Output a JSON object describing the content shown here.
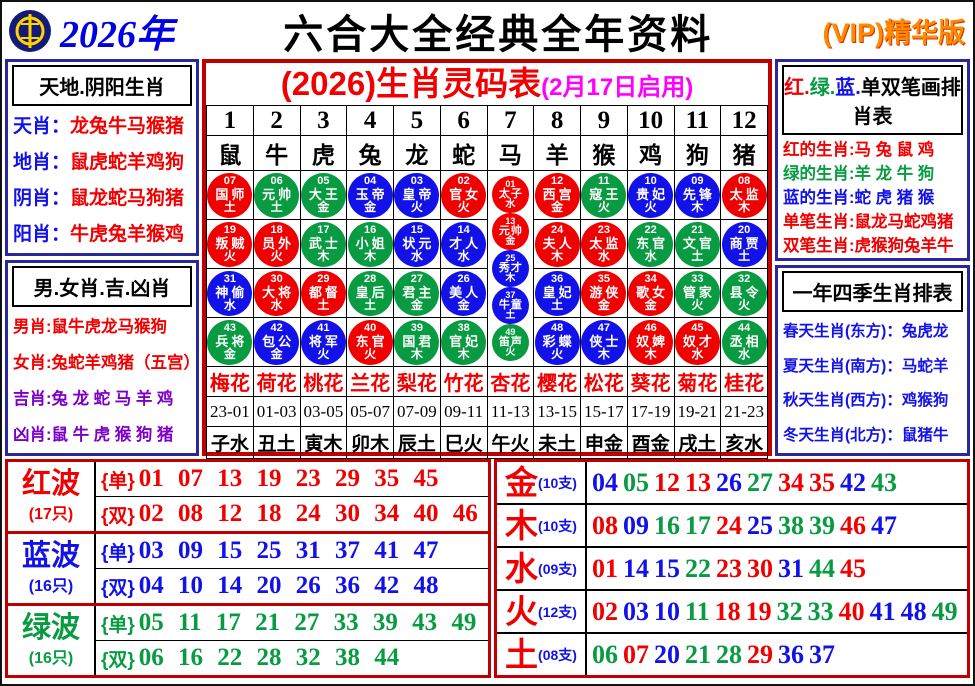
{
  "colors": {
    "red": "#f00000",
    "green": "#089b41",
    "blue": "#1212e8",
    "purple": "#7d00c8",
    "magenta": "#ff00ff",
    "navy": "#28289a",
    "border_red": "#c00000",
    "vip_orange": "#ff8a00",
    "year_blue": "#0000e0"
  },
  "number_color_map": {
    "red": [
      1,
      2,
      7,
      8,
      12,
      13,
      18,
      19,
      23,
      24,
      29,
      30,
      34,
      35,
      40,
      45,
      46
    ],
    "blue": [
      3,
      4,
      9,
      10,
      14,
      15,
      20,
      25,
      26,
      31,
      36,
      37,
      41,
      42,
      47,
      48
    ],
    "green": [
      5,
      6,
      11,
      16,
      17,
      21,
      22,
      27,
      28,
      32,
      33,
      38,
      39,
      43,
      44,
      49
    ]
  },
  "header": {
    "year": "2026年",
    "title": "六合大全经典全年资料",
    "vip": "(VIP)精华版"
  },
  "left_panel": {
    "box1": {
      "title": "天地.阴阳生肖",
      "items": [
        {
          "label": "天肖",
          "value": "龙兔牛马猴猪",
          "label_color": "blue",
          "value_color": "red"
        },
        {
          "label": "地肖",
          "value": "鼠虎蛇羊鸡狗",
          "label_color": "blue",
          "value_color": "red"
        },
        {
          "label": "阴肖",
          "value": "鼠龙蛇马狗猪",
          "label_color": "blue",
          "value_color": "red"
        },
        {
          "label": "阳肖",
          "value": "牛虎兔羊猴鸡",
          "label_color": "blue",
          "value_color": "red"
        }
      ]
    },
    "box2": {
      "title": "男.女肖.吉.凶肖",
      "items": [
        {
          "label": "男肖",
          "value": "鼠牛虎龙马猴狗",
          "label_color": "red",
          "value_color": "red"
        },
        {
          "label": "女肖",
          "value": "兔蛇羊鸡猪（五宫）",
          "label_color": "red",
          "value_color": "red"
        },
        {
          "label": "吉肖",
          "value": "兔 龙 蛇 马 羊 鸡",
          "label_color": "purple",
          "value_color": "purple"
        },
        {
          "label": "凶肖",
          "value": "鼠 牛 虎 猴 狗 猪",
          "label_color": "purple",
          "value_color": "purple"
        }
      ]
    }
  },
  "center": {
    "title": "(2026)生肖灵码表",
    "subtitle": "(2月17日启用)",
    "columns": [
      {
        "num": "1",
        "zodiac": "鼠",
        "flower": "梅花",
        "hour": "23-01",
        "branch": "子水",
        "balls": [
          {
            "n": "07",
            "t": "国师",
            "e": "土"
          },
          {
            "n": "19",
            "t": "叛贼",
            "e": "火"
          },
          {
            "n": "31",
            "t": "神偷",
            "e": "水"
          },
          {
            "n": "43",
            "t": "兵将",
            "e": "金"
          }
        ]
      },
      {
        "num": "2",
        "zodiac": "牛",
        "flower": "荷花",
        "hour": "01-03",
        "branch": "丑土",
        "balls": [
          {
            "n": "06",
            "t": "元帅",
            "e": "土"
          },
          {
            "n": "18",
            "t": "员外",
            "e": "火"
          },
          {
            "n": "30",
            "t": "大将",
            "e": "水"
          },
          {
            "n": "42",
            "t": "包公",
            "e": "金"
          }
        ]
      },
      {
        "num": "3",
        "zodiac": "虎",
        "flower": "桃花",
        "hour": "03-05",
        "branch": "寅木",
        "balls": [
          {
            "n": "05",
            "t": "大王",
            "e": "金"
          },
          {
            "n": "17",
            "t": "武士",
            "e": "木"
          },
          {
            "n": "29",
            "t": "都督",
            "e": "土"
          },
          {
            "n": "41",
            "t": "将军",
            "e": "火"
          }
        ]
      },
      {
        "num": "4",
        "zodiac": "兔",
        "flower": "兰花",
        "hour": "05-07",
        "branch": "卯木",
        "balls": [
          {
            "n": "04",
            "t": "玉帝",
            "e": "金"
          },
          {
            "n": "16",
            "t": "小姐",
            "e": "木"
          },
          {
            "n": "28",
            "t": "皇后",
            "e": "土"
          },
          {
            "n": "40",
            "t": "东官",
            "e": "火"
          }
        ]
      },
      {
        "num": "5",
        "zodiac": "龙",
        "flower": "梨花",
        "hour": "07-09",
        "branch": "辰土",
        "balls": [
          {
            "n": "03",
            "t": "皇帝",
            "e": "火"
          },
          {
            "n": "15",
            "t": "状元",
            "e": "水"
          },
          {
            "n": "27",
            "t": "君主",
            "e": "金"
          },
          {
            "n": "39",
            "t": "国君",
            "e": "木"
          }
        ]
      },
      {
        "num": "6",
        "zodiac": "蛇",
        "flower": "竹花",
        "hour": "09-11",
        "branch": "巳火",
        "balls": [
          {
            "n": "02",
            "t": "官女",
            "e": "火"
          },
          {
            "n": "14",
            "t": "才人",
            "e": "水"
          },
          {
            "n": "26",
            "t": "美人",
            "e": "金"
          },
          {
            "n": "38",
            "t": "官妃",
            "e": "木"
          }
        ]
      },
      {
        "num": "7",
        "zodiac": "马",
        "flower": "杏花",
        "hour": "11-13",
        "branch": "午火",
        "balls": [
          {
            "n": "01",
            "t": "太子",
            "e": "水"
          },
          {
            "n": "13",
            "t": "元帅",
            "e": "金"
          },
          {
            "n": "25",
            "t": "秀才",
            "e": "木"
          },
          {
            "n": "37",
            "t": "牛童",
            "e": "土"
          },
          {
            "n": "49",
            "t": "笛声",
            "e": "火"
          }
        ]
      },
      {
        "num": "8",
        "zodiac": "羊",
        "flower": "樱花",
        "hour": "13-15",
        "branch": "未土",
        "balls": [
          {
            "n": "12",
            "t": "西宫",
            "e": "金"
          },
          {
            "n": "24",
            "t": "夫人",
            "e": "木"
          },
          {
            "n": "36",
            "t": "皇妃",
            "e": "土"
          },
          {
            "n": "48",
            "t": "彩蝶",
            "e": "火"
          }
        ]
      },
      {
        "num": "9",
        "zodiac": "猴",
        "flower": "松花",
        "hour": "15-17",
        "branch": "申金",
        "balls": [
          {
            "n": "11",
            "t": "寇王",
            "e": "火"
          },
          {
            "n": "23",
            "t": "太监",
            "e": "水"
          },
          {
            "n": "35",
            "t": "游侠",
            "e": "金"
          },
          {
            "n": "47",
            "t": "侠士",
            "e": "木"
          }
        ]
      },
      {
        "num": "10",
        "zodiac": "鸡",
        "flower": "葵花",
        "hour": "17-19",
        "branch": "酉金",
        "balls": [
          {
            "n": "10",
            "t": "贵妃",
            "e": "火"
          },
          {
            "n": "22",
            "t": "东官",
            "e": "水"
          },
          {
            "n": "34",
            "t": "歌女",
            "e": "金"
          },
          {
            "n": "46",
            "t": "奴婢",
            "e": "木"
          }
        ]
      },
      {
        "num": "11",
        "zodiac": "狗",
        "flower": "菊花",
        "hour": "19-21",
        "branch": "戌土",
        "balls": [
          {
            "n": "09",
            "t": "先锋",
            "e": "木"
          },
          {
            "n": "21",
            "t": "文官",
            "e": "土"
          },
          {
            "n": "33",
            "t": "管家",
            "e": "火"
          },
          {
            "n": "45",
            "t": "奴才",
            "e": "水"
          }
        ]
      },
      {
        "num": "12",
        "zodiac": "猪",
        "flower": "桂花",
        "hour": "21-23",
        "branch": "亥水",
        "balls": [
          {
            "n": "08",
            "t": "太监",
            "e": "木"
          },
          {
            "n": "20",
            "t": "商贾",
            "e": "土"
          },
          {
            "n": "32",
            "t": "县令",
            "e": "火"
          },
          {
            "n": "44",
            "t": "丞相",
            "e": "水"
          }
        ]
      }
    ]
  },
  "right_panel": {
    "box1": {
      "title_parts": [
        {
          "text": "红.",
          "color": "red"
        },
        {
          "text": "绿.",
          "color": "green"
        },
        {
          "text": "蓝.",
          "color": "blue"
        },
        {
          "text": "单双笔画排肖表",
          "color": "black"
        }
      ],
      "items": [
        {
          "label": "红的生肖",
          "value": "马 兔 鼠 鸡",
          "color": "red"
        },
        {
          "label": "绿的生肖",
          "value": "羊 龙 牛 狗",
          "color": "green"
        },
        {
          "label": "蓝的生肖",
          "value": "蛇 虎 猪 猴",
          "color": "blue"
        },
        {
          "label": "单笔生肖",
          "value": "鼠龙马蛇鸡猪",
          "color": "red"
        },
        {
          "label": "双笔生肖",
          "value": "虎猴狗兔羊牛",
          "color": "red"
        }
      ]
    },
    "box2": {
      "title": "一年四季生肖排表",
      "items": [
        {
          "label": "春天生肖(东方)",
          "value": "兔虎龙",
          "color": "blue"
        },
        {
          "label": "夏天生肖(南方)",
          "value": "马蛇羊",
          "color": "blue"
        },
        {
          "label": "秋天生肖(西方)",
          "value": "鸡猴狗",
          "color": "blue"
        },
        {
          "label": "冬天生肖(北方)",
          "value": "鼠猪牛",
          "color": "blue"
        }
      ]
    }
  },
  "bottom_left": {
    "groups": [
      {
        "name": "红波",
        "count": "(17只)",
        "color": "red",
        "rows": [
          {
            "tag": "单",
            "nums": "01 07 13 19 23 29 35 45"
          },
          {
            "tag": "双",
            "nums": "02 08 12 18 24 30 34 40 46"
          }
        ]
      },
      {
        "name": "蓝波",
        "count": "(16只)",
        "color": "blue",
        "rows": [
          {
            "tag": "单",
            "nums": "03 09 15 25 31 37 41 47"
          },
          {
            "tag": "双",
            "nums": "04 10 14 20 26 36 42 48"
          }
        ]
      },
      {
        "name": "绿波",
        "count": "(16只)",
        "color": "green",
        "rows": [
          {
            "tag": "单",
            "nums": "05 11 17 21 27 33 39 43 49"
          },
          {
            "tag": "双",
            "nums": "06 16 22 28 32 38 44"
          }
        ]
      }
    ]
  },
  "bottom_right": {
    "rows": [
      {
        "name": "金",
        "count": "(10支)",
        "nums": [
          "04",
          "05",
          "12",
          "13",
          "26",
          "27",
          "34",
          "35",
          "42",
          "43"
        ]
      },
      {
        "name": "木",
        "count": "(10支)",
        "nums": [
          "08",
          "09",
          "16",
          "17",
          "24",
          "25",
          "38",
          "39",
          "46",
          "47"
        ]
      },
      {
        "name": "水",
        "count": "(09支)",
        "nums": [
          "01",
          "14",
          "15",
          "22",
          "23",
          "30",
          "31",
          "44",
          "45"
        ]
      },
      {
        "name": "火",
        "count": "(12支)",
        "nums": [
          "02",
          "03",
          "10",
          "11",
          "18",
          "19",
          "32",
          "33",
          "40",
          "41",
          "48",
          "49"
        ]
      },
      {
        "name": "土",
        "count": "(08支)",
        "nums": [
          "06",
          "07",
          "20",
          "21",
          "28",
          "29",
          "36",
          "37"
        ]
      }
    ]
  }
}
